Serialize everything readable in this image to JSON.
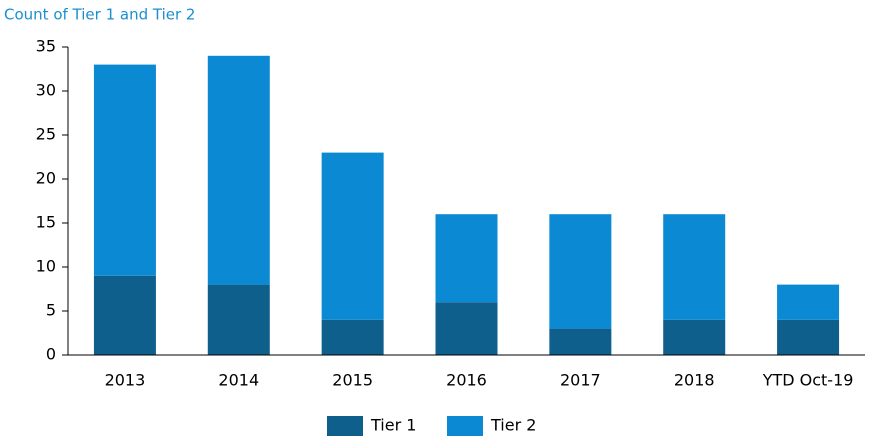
{
  "chart_data": {
    "type": "stacked_bar",
    "title": "Count of Tier 1 and Tier 2",
    "categories": [
      "2013",
      "2014",
      "2015",
      "2016",
      "2017",
      "2018",
      "YTD Oct-19"
    ],
    "series": [
      {
        "name": "Tier 1",
        "color": "#0f5f8d",
        "values": [
          9,
          8,
          4,
          6,
          3,
          4,
          4
        ]
      },
      {
        "name": "Tier 2",
        "color": "#0b8ad3",
        "values": [
          24,
          26,
          19,
          10,
          13,
          12,
          4
        ]
      }
    ],
    "ylim": [
      0,
      35
    ],
    "yticks": [
      0,
      5,
      10,
      15,
      20,
      25,
      30,
      35
    ],
    "grid": false,
    "legend": "bottom"
  }
}
